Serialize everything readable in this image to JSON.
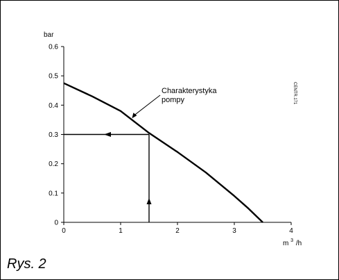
{
  "chart_data": {
    "type": "line",
    "ylabel": "bar",
    "xlabel_base": "m",
    "xlabel_sup": "3",
    "xlabel_rest": "/h",
    "xlim": [
      0,
      4
    ],
    "ylim": [
      0,
      0.6
    ],
    "x_ticks": [
      "0",
      "1",
      "2",
      "3",
      "4"
    ],
    "y_ticks": [
      "0",
      "0.1",
      "0.2",
      "0.3",
      "0.4",
      "0.5",
      "0.6"
    ],
    "grid": false,
    "series": [
      {
        "name": "Charakterystyka pompy",
        "x": [
          0,
          0.5,
          1.0,
          1.5,
          2.0,
          2.5,
          3.0,
          3.25,
          3.5
        ],
        "y": [
          0.475,
          0.43,
          0.38,
          0.305,
          0.24,
          0.17,
          0.09,
          0.047,
          0
        ]
      }
    ],
    "operating_point": {
      "x": 1.5,
      "y": 0.3
    },
    "annotation_lines": [
      "Charakterystyka",
      "pompy"
    ],
    "side_code": "CENTR.171"
  },
  "caption": "Rys. 2",
  "colors": {
    "ink": "#000000",
    "background": "#ffffff"
  }
}
